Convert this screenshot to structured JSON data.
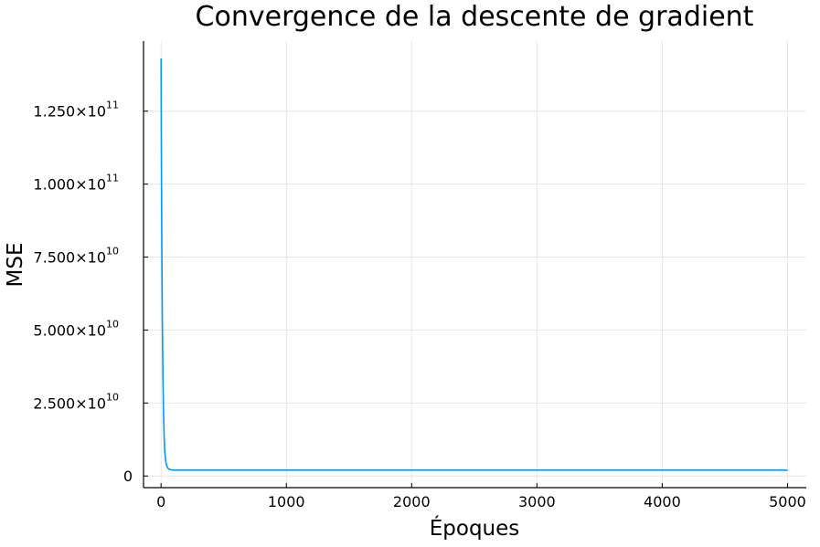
{
  "chart_data": {
    "type": "line",
    "title": "Convergence de la descente de gradient",
    "xlabel": "Époques",
    "ylabel": "MSE",
    "xlim": [
      -140,
      5150
    ],
    "ylim": [
      -4000000000,
      149000000000
    ],
    "x_ticks": [
      0,
      1000,
      2000,
      3000,
      4000,
      5000
    ],
    "y_ticks": [
      {
        "value": 0,
        "mantissa": "0",
        "exponent": ""
      },
      {
        "value": 25000000000,
        "mantissa": "2.500×10",
        "exponent": "10"
      },
      {
        "value": 50000000000,
        "mantissa": "5.000×10",
        "exponent": "10"
      },
      {
        "value": 75000000000,
        "mantissa": "7.500×10",
        "exponent": "10"
      },
      {
        "value": 100000000000,
        "mantissa": "1.000×10",
        "exponent": "11"
      },
      {
        "value": 125000000000,
        "mantissa": "1.250×10",
        "exponent": "11"
      }
    ],
    "grid": true,
    "legend": "none",
    "series": [
      {
        "color": "#009AFA",
        "x": [
          0,
          2,
          5,
          8,
          10,
          15,
          20,
          25,
          30,
          40,
          50,
          60,
          80,
          100,
          150,
          200,
          500,
          1000,
          2000,
          3000,
          4000,
          5000
        ],
        "y": [
          143000000000,
          118000000000,
          88000000000,
          66000000000,
          54000000000,
          34000000000,
          21000000000,
          13000000000,
          8000000000,
          4200000000,
          3000000000,
          2400000000,
          2100000000,
          2000000000,
          2000000000,
          2000000000,
          2000000000,
          2000000000,
          2000000000,
          2000000000,
          2000000000,
          2000000000
        ]
      }
    ]
  }
}
